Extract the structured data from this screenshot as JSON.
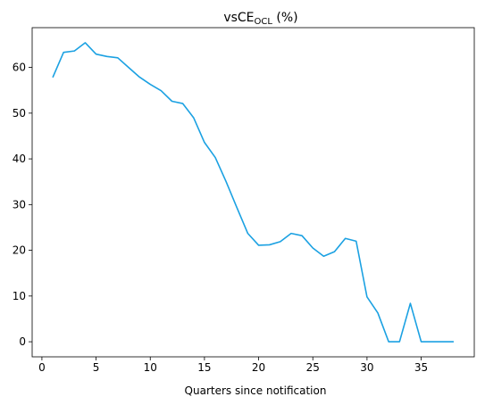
{
  "chart_data": {
    "type": "line",
    "title": "vsCE",
    "title_subscript": "OCL",
    "title_suffix": " (%)",
    "xlabel": "Quarters since notification",
    "ylabel": "",
    "xlim": [
      -0.9,
      39.9
    ],
    "ylim": [
      -3.3,
      68.7
    ],
    "xticks": [
      0,
      5,
      10,
      15,
      20,
      25,
      30,
      35
    ],
    "yticks": [
      0,
      10,
      20,
      30,
      40,
      50,
      60
    ],
    "grid": false,
    "series": [
      {
        "color": "#1ba1e2",
        "x": [
          1,
          2,
          3,
          4,
          5,
          6,
          7,
          8,
          9,
          10,
          11,
          12,
          13,
          14,
          15,
          16,
          17,
          18,
          19,
          20,
          21,
          22,
          23,
          24,
          25,
          26,
          27,
          28,
          29,
          30,
          31,
          32,
          33,
          34,
          35,
          36,
          37,
          38
        ],
        "y": [
          57.8,
          63.3,
          63.6,
          65.4,
          62.9,
          62.4,
          62.1,
          60.0,
          57.9,
          56.3,
          54.9,
          52.6,
          52.1,
          49.0,
          43.6,
          40.3,
          35.0,
          29.3,
          23.7,
          21.1,
          21.2,
          21.9,
          23.7,
          23.2,
          20.5,
          18.7,
          19.7,
          22.6,
          22.0,
          9.8,
          6.3,
          0.0,
          0.0,
          8.4,
          0.0,
          0.0,
          0.0,
          0.0
        ]
      }
    ]
  }
}
